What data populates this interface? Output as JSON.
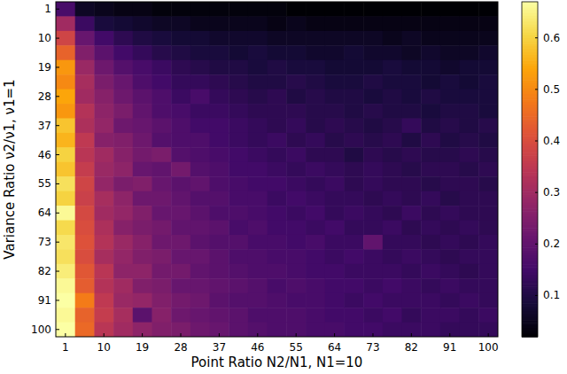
{
  "chart_data": {
    "type": "heatmap",
    "x_label": "Point Ratio N2/N1, N1=10",
    "y_label": "Variance Ratio ν2/ν1, ν1=1",
    "color": "inferno",
    "x": [
      1,
      5.5,
      10,
      14.5,
      19,
      23.5,
      28,
      32.5,
      37,
      41.5,
      46,
      50.5,
      55,
      59.5,
      64,
      68.5,
      73,
      77.5,
      82,
      86.5,
      91,
      95.5,
      100
    ],
    "y": [
      1,
      5.5,
      10,
      14.5,
      19,
      23.5,
      28,
      32.5,
      37,
      41.5,
      46,
      50.5,
      55,
      59.5,
      64,
      68.5,
      73,
      77.5,
      82,
      86.5,
      91,
      95.5,
      100
    ],
    "xlim": [
      -1.25,
      102.25
    ],
    "ylim": [
      102.25,
      -1.25
    ],
    "xticks": [
      1,
      10,
      19,
      28,
      37,
      46,
      55,
      64,
      73,
      82,
      91,
      100
    ],
    "yticks": [
      1,
      10,
      19,
      28,
      37,
      46,
      55,
      64,
      73,
      82,
      91,
      100
    ],
    "values": [
      [
        0.16,
        0.06,
        0.05,
        0.04,
        0.04,
        0.03,
        0.03,
        0.03,
        0.03,
        0.03,
        0.03,
        0.03,
        0.02,
        0.02,
        0.02,
        0.02,
        0.02,
        0.02,
        0.02,
        0.02,
        0.02,
        0.02,
        0.02
      ],
      [
        0.3,
        0.14,
        0.09,
        0.08,
        0.07,
        0.06,
        0.06,
        0.05,
        0.05,
        0.05,
        0.05,
        0.04,
        0.05,
        0.04,
        0.04,
        0.04,
        0.04,
        0.04,
        0.04,
        0.04,
        0.04,
        0.04,
        0.04
      ],
      [
        0.38,
        0.21,
        0.15,
        0.12,
        0.1,
        0.09,
        0.08,
        0.08,
        0.07,
        0.07,
        0.07,
        0.06,
        0.06,
        0.06,
        0.06,
        0.06,
        0.06,
        0.05,
        0.06,
        0.05,
        0.05,
        0.05,
        0.05
      ],
      [
        0.44,
        0.25,
        0.19,
        0.15,
        0.13,
        0.11,
        0.1,
        0.09,
        0.09,
        0.08,
        0.09,
        0.08,
        0.08,
        0.07,
        0.07,
        0.08,
        0.07,
        0.07,
        0.06,
        0.07,
        0.06,
        0.06,
        0.07
      ],
      [
        0.52,
        0.29,
        0.22,
        0.18,
        0.16,
        0.14,
        0.12,
        0.11,
        0.1,
        0.1,
        0.09,
        0.1,
        0.09,
        0.09,
        0.08,
        0.08,
        0.08,
        0.09,
        0.08,
        0.08,
        0.07,
        0.08,
        0.08
      ],
      [
        0.5,
        0.31,
        0.24,
        0.21,
        0.17,
        0.15,
        0.13,
        0.13,
        0.12,
        0.11,
        0.1,
        0.1,
        0.11,
        0.1,
        0.09,
        0.09,
        0.1,
        0.09,
        0.09,
        0.08,
        0.09,
        0.08,
        0.09
      ],
      [
        0.54,
        0.3,
        0.26,
        0.22,
        0.19,
        0.17,
        0.14,
        0.16,
        0.13,
        0.12,
        0.11,
        0.12,
        0.1,
        0.11,
        0.1,
        0.1,
        0.09,
        0.1,
        0.09,
        0.1,
        0.09,
        0.09,
        0.09
      ],
      [
        0.52,
        0.33,
        0.27,
        0.24,
        0.2,
        0.17,
        0.16,
        0.14,
        0.14,
        0.13,
        0.12,
        0.12,
        0.12,
        0.11,
        0.11,
        0.1,
        0.11,
        0.1,
        0.1,
        0.09,
        0.1,
        0.1,
        0.09
      ],
      [
        0.58,
        0.32,
        0.28,
        0.22,
        0.21,
        0.19,
        0.17,
        0.15,
        0.15,
        0.14,
        0.13,
        0.12,
        0.13,
        0.11,
        0.12,
        0.11,
        0.1,
        0.11,
        0.13,
        0.1,
        0.11,
        0.1,
        0.11
      ],
      [
        0.56,
        0.35,
        0.26,
        0.25,
        0.22,
        0.18,
        0.17,
        0.17,
        0.15,
        0.14,
        0.13,
        0.14,
        0.12,
        0.13,
        0.11,
        0.12,
        0.11,
        0.12,
        0.1,
        0.12,
        0.1,
        0.11,
        0.1
      ],
      [
        0.6,
        0.34,
        0.3,
        0.26,
        0.23,
        0.24,
        0.18,
        0.17,
        0.16,
        0.15,
        0.14,
        0.13,
        0.14,
        0.12,
        0.12,
        0.1,
        0.12,
        0.11,
        0.12,
        0.11,
        0.11,
        0.12,
        0.11
      ],
      [
        0.58,
        0.36,
        0.29,
        0.27,
        0.21,
        0.2,
        0.23,
        0.18,
        0.17,
        0.15,
        0.15,
        0.14,
        0.13,
        0.14,
        0.13,
        0.12,
        0.13,
        0.12,
        0.11,
        0.12,
        0.12,
        0.11,
        0.12
      ],
      [
        0.62,
        0.38,
        0.28,
        0.24,
        0.25,
        0.21,
        0.19,
        0.2,
        0.17,
        0.16,
        0.15,
        0.15,
        0.14,
        0.13,
        0.14,
        0.12,
        0.13,
        0.12,
        0.12,
        0.11,
        0.12,
        0.12,
        0.11
      ],
      [
        0.6,
        0.37,
        0.31,
        0.27,
        0.22,
        0.22,
        0.2,
        0.18,
        0.18,
        0.16,
        0.16,
        0.14,
        0.15,
        0.14,
        0.13,
        0.13,
        0.12,
        0.13,
        0.12,
        0.13,
        0.11,
        0.12,
        0.12
      ],
      [
        0.66,
        0.39,
        0.3,
        0.28,
        0.25,
        0.21,
        0.21,
        0.19,
        0.17,
        0.17,
        0.16,
        0.15,
        0.14,
        0.15,
        0.13,
        0.14,
        0.13,
        0.12,
        0.14,
        0.12,
        0.13,
        0.12,
        0.12
      ],
      [
        0.61,
        0.4,
        0.32,
        0.26,
        0.24,
        0.23,
        0.2,
        0.2,
        0.19,
        0.16,
        0.17,
        0.15,
        0.15,
        0.14,
        0.15,
        0.13,
        0.13,
        0.14,
        0.12,
        0.13,
        0.12,
        0.13,
        0.12
      ],
      [
        0.63,
        0.41,
        0.33,
        0.29,
        0.26,
        0.22,
        0.22,
        0.19,
        0.18,
        0.18,
        0.16,
        0.16,
        0.15,
        0.16,
        0.14,
        0.14,
        0.2,
        0.13,
        0.13,
        0.12,
        0.13,
        0.12,
        0.13
      ],
      [
        0.62,
        0.4,
        0.31,
        0.28,
        0.25,
        0.24,
        0.21,
        0.21,
        0.19,
        0.17,
        0.17,
        0.16,
        0.16,
        0.15,
        0.14,
        0.15,
        0.14,
        0.13,
        0.14,
        0.13,
        0.12,
        0.13,
        0.13
      ],
      [
        0.64,
        0.42,
        0.34,
        0.27,
        0.27,
        0.23,
        0.23,
        0.2,
        0.19,
        0.18,
        0.17,
        0.17,
        0.16,
        0.15,
        0.15,
        0.14,
        0.14,
        0.14,
        0.13,
        0.14,
        0.13,
        0.12,
        0.13
      ],
      [
        0.66,
        0.43,
        0.33,
        0.3,
        0.25,
        0.24,
        0.21,
        0.21,
        0.2,
        0.19,
        0.18,
        0.16,
        0.17,
        0.16,
        0.15,
        0.15,
        0.14,
        0.15,
        0.14,
        0.13,
        0.14,
        0.13,
        0.13
      ],
      [
        0.68,
        0.48,
        0.35,
        0.29,
        0.28,
        0.25,
        0.23,
        0.22,
        0.19,
        0.18,
        0.18,
        0.17,
        0.16,
        0.16,
        0.15,
        0.14,
        0.15,
        0.14,
        0.14,
        0.14,
        0.13,
        0.14,
        0.13
      ],
      [
        0.66,
        0.44,
        0.36,
        0.31,
        0.19,
        0.26,
        0.22,
        0.21,
        0.2,
        0.19,
        0.17,
        0.17,
        0.17,
        0.16,
        0.15,
        0.15,
        0.14,
        0.15,
        0.13,
        0.14,
        0.14,
        0.13,
        0.14
      ],
      [
        0.67,
        0.45,
        0.34,
        0.3,
        0.27,
        0.25,
        0.24,
        0.22,
        0.21,
        0.19,
        0.18,
        0.17,
        0.17,
        0.16,
        0.16,
        0.15,
        0.15,
        0.14,
        0.14,
        0.14,
        0.13,
        0.13,
        0.13
      ]
    ],
    "colorbar": {
      "range": [
        0.02,
        0.67
      ],
      "ticks": [
        0.1,
        0.2,
        0.3,
        0.4,
        0.5,
        0.6
      ]
    }
  }
}
